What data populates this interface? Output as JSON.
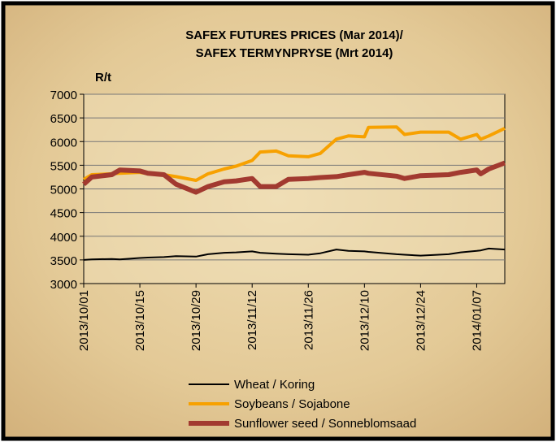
{
  "chart_data": {
    "type": "line",
    "title": [
      "SAFEX FUTURES PRICES (Mar 2014)/",
      "SAFEX TERMYNPRYSE (Mrt 2014)"
    ],
    "y_label": "R/t",
    "x": [
      "2013/10/01",
      "2013/10/03",
      "2013/10/08",
      "2013/10/10",
      "2013/10/15",
      "2013/10/17",
      "2013/10/21",
      "2013/10/24",
      "2013/10/29",
      "2013/11/01",
      "2013/11/05",
      "2013/11/08",
      "2013/11/12",
      "2013/11/14",
      "2013/11/18",
      "2013/11/21",
      "2013/11/26",
      "2013/11/29",
      "2013/12/03",
      "2013/12/06",
      "2013/12/10",
      "2013/12/11",
      "2013/12/18",
      "2013/12/20",
      "2013/12/24",
      "2013/12/31",
      "2014/01/03",
      "2014/01/07",
      "2014/01/08",
      "2014/01/10",
      "2014/01/14"
    ],
    "series": [
      {
        "name": "Wheat / Koring",
        "color": "#000000",
        "width": 2,
        "values": [
          3500,
          3510,
          3520,
          3510,
          3540,
          3550,
          3560,
          3580,
          3570,
          3620,
          3650,
          3660,
          3680,
          3650,
          3630,
          3620,
          3610,
          3640,
          3720,
          3690,
          3680,
          3670,
          3620,
          3610,
          3590,
          3620,
          3660,
          3690,
          3700,
          3740,
          3720
        ]
      },
      {
        "name": "Soybeans / Sojabone",
        "color": "#f7a100",
        "width": 4,
        "values": [
          5200,
          5300,
          5320,
          5330,
          5350,
          5320,
          5300,
          5260,
          5180,
          5320,
          5420,
          5480,
          5600,
          5780,
          5800,
          5700,
          5680,
          5750,
          6050,
          6120,
          6100,
          6300,
          6310,
          6150,
          6200,
          6200,
          6050,
          6150,
          6050,
          6120,
          6280
        ]
      },
      {
        "name": "Sunflower seed / Sonneblomsaad",
        "color": "#a23a30",
        "width": 6,
        "values": [
          5100,
          5250,
          5300,
          5400,
          5380,
          5330,
          5300,
          5100,
          4930,
          5050,
          5150,
          5170,
          5220,
          5050,
          5050,
          5200,
          5220,
          5240,
          5260,
          5300,
          5350,
          5330,
          5270,
          5220,
          5280,
          5300,
          5350,
          5400,
          5320,
          5420,
          5550
        ]
      }
    ],
    "xlim": [
      "2013/10/01",
      "2014/01/14"
    ],
    "xticks": [
      "2013/10/01",
      "2013/10/15",
      "2013/10/29",
      "2013/11/12",
      "2013/11/26",
      "2013/12/10",
      "2013/12/24",
      "2014/01/07"
    ],
    "ylim": [
      3000,
      7000
    ],
    "yticks": [
      3000,
      3500,
      4000,
      4500,
      5000,
      5500,
      6000,
      6500,
      7000
    ],
    "grid": true,
    "legend": "bottom"
  }
}
